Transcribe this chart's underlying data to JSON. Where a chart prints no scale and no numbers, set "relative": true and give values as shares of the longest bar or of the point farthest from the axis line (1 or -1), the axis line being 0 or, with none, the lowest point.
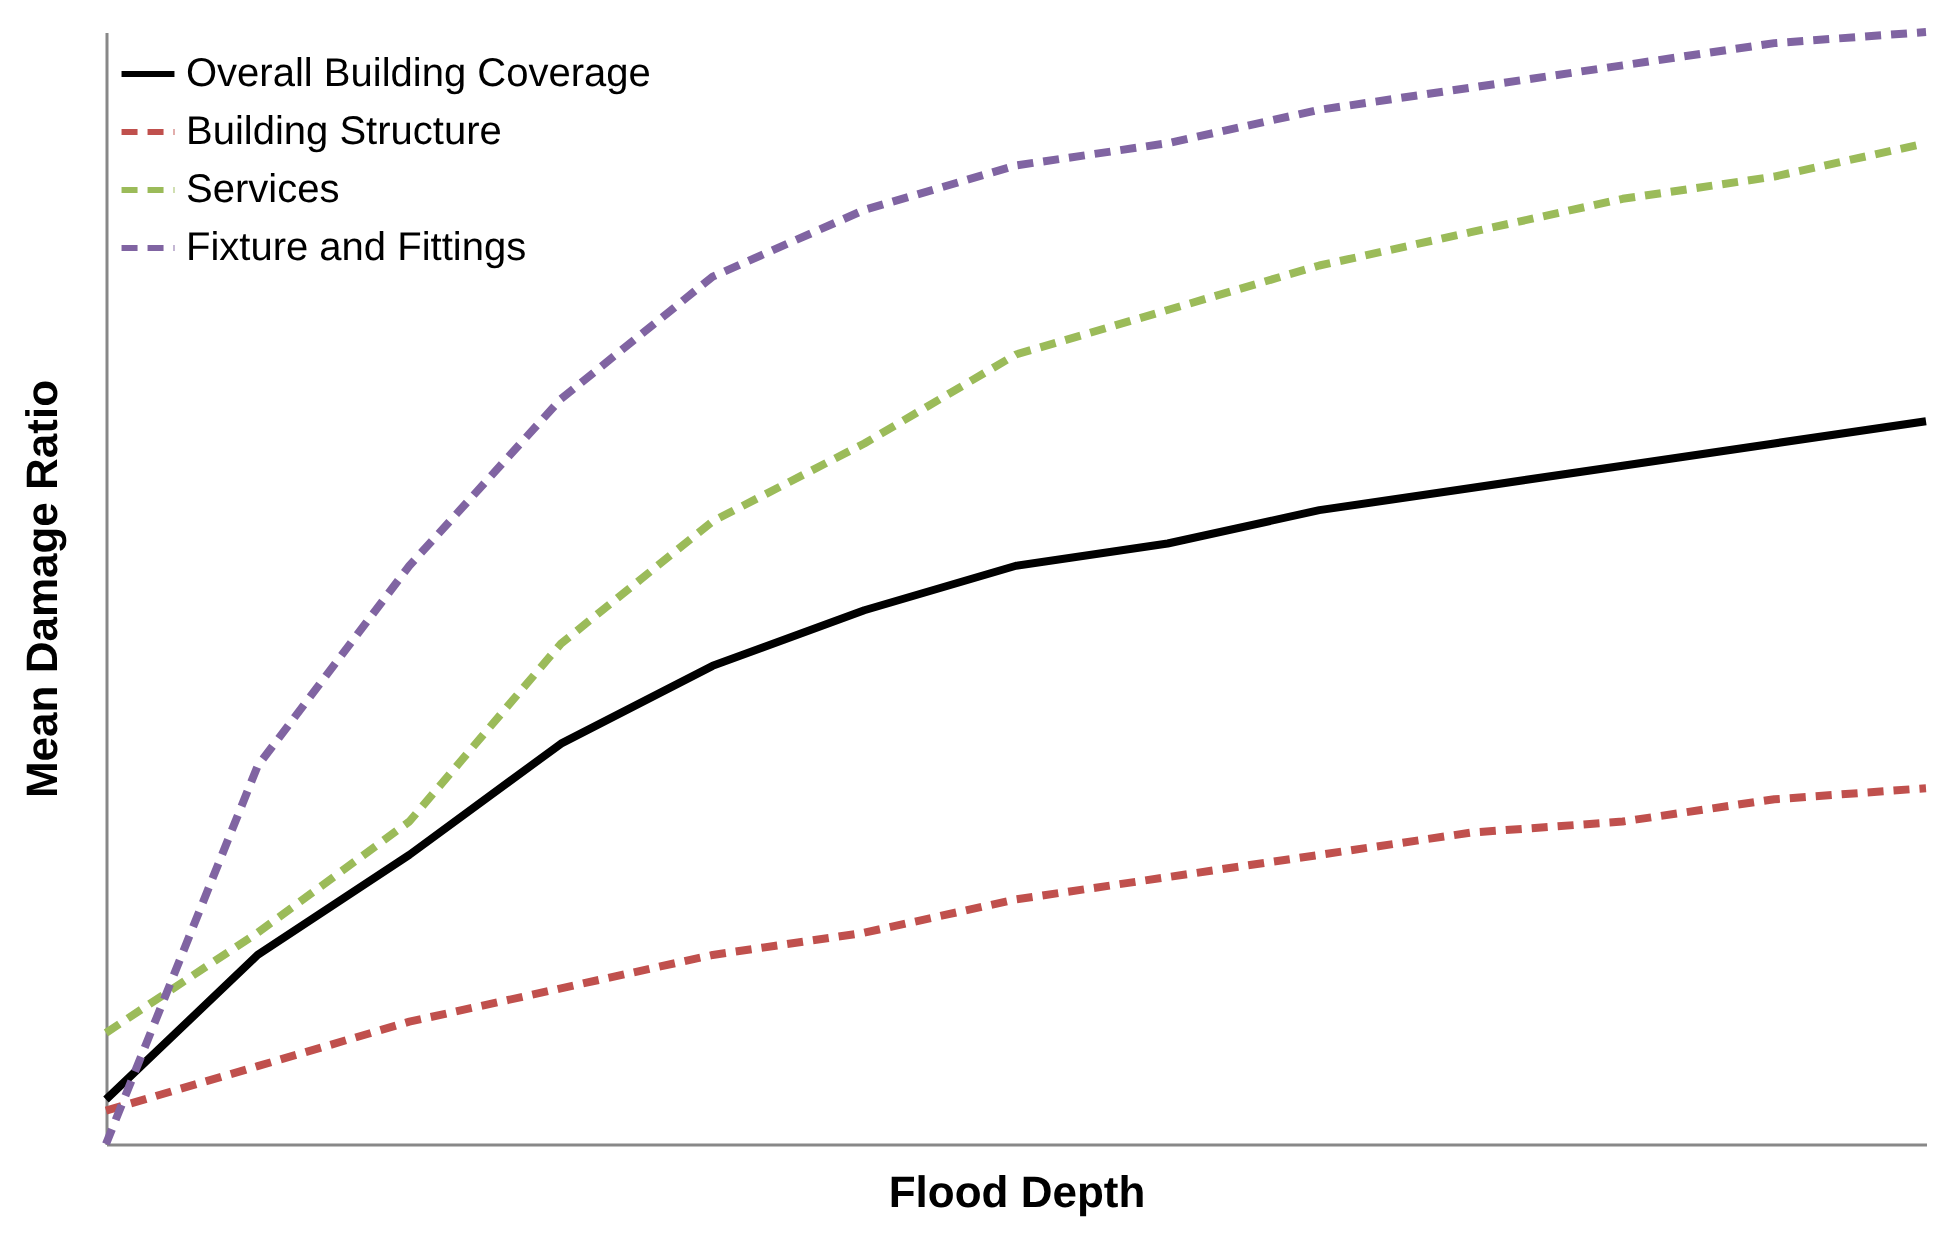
{
  "chart_data": {
    "type": "line",
    "relative": true,
    "xlabel": "Flood Depth",
    "ylabel": "Mean Damage Ratio",
    "legend": "top left",
    "categories": [
      null,
      null,
      null,
      null,
      null,
      null,
      null,
      null,
      null,
      null,
      null,
      null,
      null
    ],
    "series": [
      {
        "name": "Overall Building Coverage",
        "color": "#000000",
        "line_style": "solid",
        "values": [
          0.04,
          0.17,
          0.26,
          0.36,
          0.43,
          0.48,
          0.52,
          0.54,
          0.57,
          0.59,
          0.61,
          0.63,
          0.65
        ]
      },
      {
        "name": "Building Structure",
        "color": "#c0504d",
        "line_style": "dashed",
        "values": [
          0.03,
          0.07,
          0.11,
          0.14,
          0.17,
          0.19,
          0.22,
          0.24,
          0.26,
          0.28,
          0.29,
          0.31,
          0.32
        ]
      },
      {
        "name": "Services",
        "color": "#9bbb59",
        "line_style": "dashed",
        "values": [
          0.1,
          0.19,
          0.29,
          0.45,
          0.56,
          0.63,
          0.71,
          0.75,
          0.79,
          0.82,
          0.85,
          0.87,
          0.9
        ]
      },
      {
        "name": "Fixture and Fittings",
        "color": "#8064a2",
        "line_style": "dashed",
        "values": [
          0,
          0.34,
          0.52,
          0.67,
          0.78,
          0.84,
          0.88,
          0.9,
          0.93,
          0.95,
          0.97,
          0.99,
          1
        ]
      }
    ]
  }
}
